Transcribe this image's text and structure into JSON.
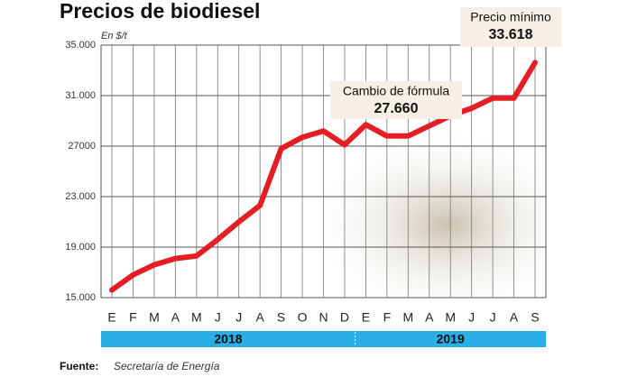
{
  "chart_data": {
    "type": "line",
    "title": "Precios de biodiesel",
    "y_label": "En $/t",
    "categories": [
      "E",
      "F",
      "M",
      "A",
      "M",
      "J",
      "J",
      "A",
      "S",
      "O",
      "N",
      "D",
      "E",
      "F",
      "M",
      "A",
      "M",
      "J",
      "J",
      "A",
      "S"
    ],
    "years": [
      {
        "name": "2018",
        "months": 12
      },
      {
        "name": "2019",
        "months": 9
      }
    ],
    "series": [
      {
        "name": "Biodiesel",
        "color": "#e31e24",
        "values": [
          15600,
          16800,
          17600,
          18100,
          18300,
          19600,
          21000,
          22300,
          26800,
          27700,
          28200,
          27100,
          28700,
          27800,
          27800,
          28600,
          29400,
          30000,
          30800,
          30800,
          33618
        ]
      }
    ],
    "ylim": [
      15000,
      35000
    ],
    "yticks": [
      {
        "value": 15000,
        "label": "15.000"
      },
      {
        "value": 19000,
        "label": "19.000"
      },
      {
        "value": 23000,
        "label": "23.000"
      },
      27000,
      {
        "value": 31000,
        "label": "31.000"
      },
      {
        "value": 35000,
        "label": "35.000"
      }
    ],
    "grid": true,
    "annotations": [
      {
        "text": "Cambio de fórmula",
        "value": "27.660"
      },
      {
        "text": "Precio mínimo",
        "value": "33.618"
      }
    ],
    "source_label": "Fuente:",
    "source": "Secretaría de Energía"
  }
}
